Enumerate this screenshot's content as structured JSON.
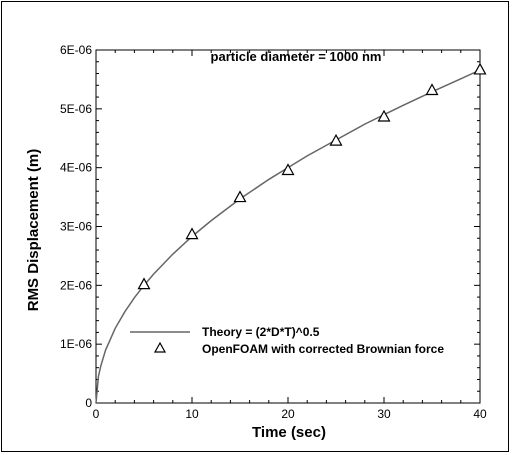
{
  "chart_data": {
    "type": "line",
    "title": "",
    "annotation": "particle diameter = 1000 nm",
    "xlabel": "Time (sec)",
    "ylabel": "RMS Displacement (m)",
    "xlim": [
      0,
      40
    ],
    "ylim": [
      0,
      6e-06
    ],
    "x_ticks": [
      0,
      10,
      20,
      30,
      40
    ],
    "x_tick_labels": [
      "0",
      "10",
      "20",
      "30",
      "40"
    ],
    "y_ticks": [
      0,
      1e-06,
      2e-06,
      3e-06,
      4e-06,
      5e-06,
      6e-06
    ],
    "y_tick_labels": [
      "0",
      "1E-06",
      "2E-06",
      "3E-06",
      "4E-06",
      "5E-06",
      "6E-06"
    ],
    "grid": false,
    "legend_position": "bottom-center",
    "series": [
      {
        "name": "Theory  = (2*D*T)^0.5",
        "kind": "line",
        "color": "#666666",
        "x": [
          0,
          0.25,
          0.5,
          1,
          2,
          3,
          4,
          5,
          6,
          8,
          10,
          12,
          15,
          18,
          20,
          22,
          25,
          28,
          30,
          32,
          35,
          38,
          40
        ],
        "y": [
          0,
          4.5e-07,
          6.3e-07,
          9e-07,
          1.27e-06,
          1.55e-06,
          1.79e-06,
          2e-06,
          2.19e-06,
          2.53e-06,
          2.83e-06,
          3.1e-06,
          3.47e-06,
          3.8e-06,
          4e-06,
          4.2e-06,
          4.47e-06,
          4.74e-06,
          4.9e-06,
          5.06e-06,
          5.29e-06,
          5.51e-06,
          5.66e-06
        ]
      },
      {
        "name": "OpenFOAM with corrected Brownian force",
        "kind": "marker",
        "marker": "triangle",
        "color": "#000000",
        "x": [
          5,
          10,
          15,
          20,
          25,
          30,
          35,
          40
        ],
        "y": [
          2.02e-06,
          2.87e-06,
          3.5e-06,
          3.96e-06,
          4.46e-06,
          4.87e-06,
          5.32e-06,
          5.67e-06
        ]
      }
    ]
  }
}
